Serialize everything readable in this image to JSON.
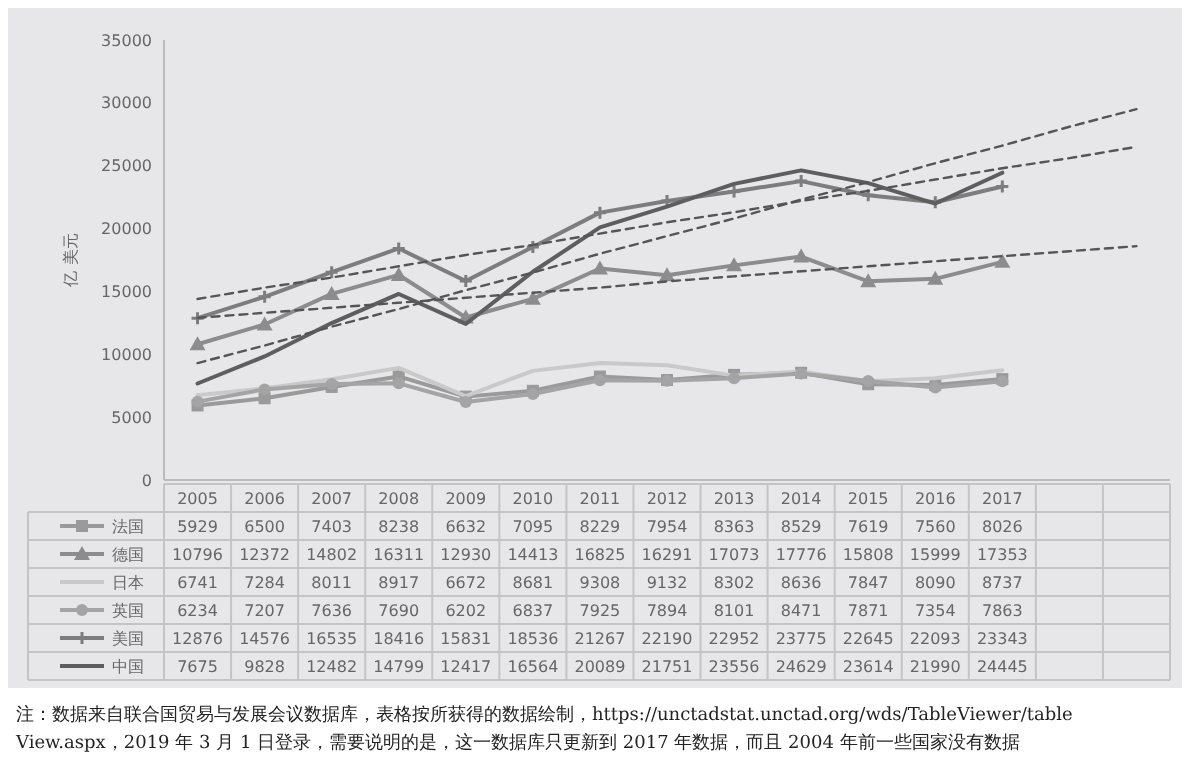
{
  "chart_data": {
    "type": "line",
    "ylabel": "亿 美元",
    "categories": [
      "2005",
      "2006",
      "2007",
      "2008",
      "2009",
      "2010",
      "2011",
      "2012",
      "2013",
      "2014",
      "2015",
      "2016",
      "2017",
      null,
      null
    ],
    "ylim": [
      0,
      35000
    ],
    "yticks": [
      0,
      5000,
      10000,
      15000,
      20000,
      25000,
      30000,
      35000
    ],
    "grid": false,
    "legend": "bottom",
    "series": [
      {
        "name": "法国",
        "color": "#9a9a9a",
        "marker": "square",
        "values": [
          5929,
          6500,
          7403,
          8238,
          6632,
          7095,
          8229,
          7954,
          8363,
          8529,
          7619,
          7560,
          8026,
          null,
          null
        ],
        "value_labels": [
          "5929",
          "6500",
          "7403",
          "8238",
          "6632",
          "7095",
          "8229",
          "7954",
          "8363",
          "8529",
          "7619",
          "7560",
          "8026",
          null,
          null
        ]
      },
      {
        "name": "德国",
        "color": "#8c8c8c",
        "marker": "triangle",
        "values": [
          10796,
          12372,
          14802,
          16311,
          12930,
          14413,
          16825,
          16291,
          17073,
          17776,
          15808,
          15999,
          17353,
          null,
          null
        ],
        "value_labels": [
          "10796",
          "12372",
          "14802",
          "16311",
          "12930",
          "14413",
          "16825",
          "16291",
          "17073",
          "17776",
          "15808",
          "15999",
          "17353",
          null,
          null
        ]
      },
      {
        "name": "日本",
        "color": "#c9c9c9",
        "marker": "none",
        "values": [
          6741,
          7284,
          8011,
          8917,
          6672,
          8681,
          9308,
          9132,
          8302,
          8636,
          7847,
          8090,
          8737,
          null,
          null
        ],
        "value_labels": [
          "6741",
          "7284",
          "8011",
          "8917",
          "6672",
          "8681",
          "9308",
          "9132",
          "8302",
          "8636",
          "7847",
          "8090",
          "8737",
          null,
          null
        ]
      },
      {
        "name": "英国",
        "color": "#a4a4a4",
        "marker": "circle",
        "values": [
          6234,
          7207,
          7636,
          7690,
          6202,
          6837,
          7925,
          7894,
          8101,
          8471,
          7871,
          7354,
          7863,
          null,
          null
        ],
        "value_labels": [
          "6234",
          "7207",
          "7636",
          "7690",
          "6202",
          "6837",
          "7925",
          "7894",
          "8101",
          "8471",
          "7871",
          "7354",
          "7863",
          null,
          null
        ]
      },
      {
        "name": "美国",
        "color": "#7d7d7d",
        "marker": "cross",
        "values": [
          12876,
          14576,
          16535,
          18416,
          15831,
          18536,
          21267,
          22190,
          22952,
          23775,
          22645,
          22093,
          23343,
          null,
          null
        ],
        "value_labels": [
          "12876",
          "14576",
          "16535",
          "18416",
          "15831",
          "18536",
          "21267",
          "22190",
          "22952",
          "23775",
          "22645",
          "22093",
          "23343",
          null,
          null
        ]
      },
      {
        "name": "中国",
        "color": "#5e5e5e",
        "marker": "none",
        "values": [
          7675,
          9828,
          12482,
          14799,
          12417,
          16564,
          20089,
          21751,
          23556,
          24629,
          23614,
          21990,
          24445,
          null,
          null
        ],
        "value_labels": [
          "7675",
          "9828",
          "12482",
          "14799",
          "12417",
          "16564",
          "20089",
          "21751",
          "23556",
          "24629",
          "23614",
          "21990",
          "24445",
          null,
          null
        ]
      },
      {
        "color": "#555555",
        "line_style": "dashed",
        "marker": "none",
        "values": [
          9300,
          10700,
          12200,
          13600,
          15100,
          16500,
          18000,
          19400,
          20800,
          22300,
          23700,
          25200,
          26600,
          28100,
          29500
        ]
      },
      {
        "color": "#555555",
        "line_style": "dashed",
        "marker": "none",
        "values": [
          14400,
          15300,
          16100,
          17000,
          17900,
          18700,
          19600,
          20500,
          21300,
          22200,
          23000,
          23900,
          24800,
          25600,
          26500
        ]
      },
      {
        "color": "#555555",
        "line_style": "dashed",
        "marker": "none",
        "values": [
          12900,
          13300,
          13700,
          14100,
          14500,
          14900,
          15300,
          15800,
          16200,
          16600,
          17000,
          17400,
          17800,
          18200,
          18600
        ]
      }
    ],
    "annotations": [
      "注：数据来自联合国贸易与发展会议数据库，表格按所获得的数据绘制，https://unctadstat.unctad.org/wds/TableViewer/tableView.aspx，2019 年 3 月 1 日登录，需要说明的是，这一数据库只更新到 2017 年数据，而且 2004 年前一些国家没有数据"
    ]
  }
}
